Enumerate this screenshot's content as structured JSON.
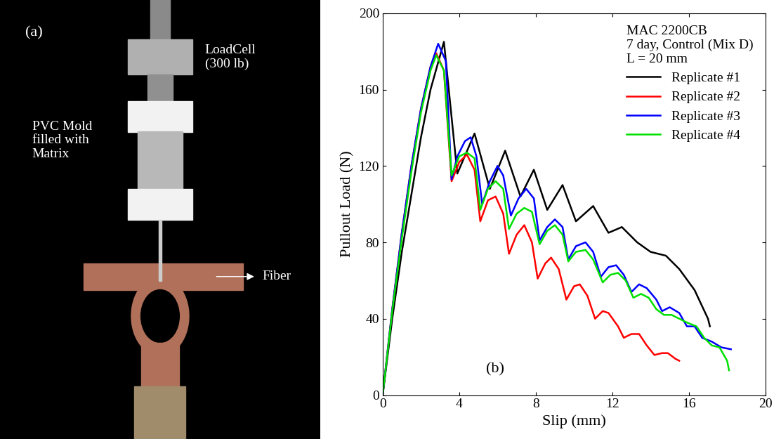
{
  "photo": {
    "panel_label": "(a)",
    "labels": [
      "LoadCell\n(300 lb)",
      "PVC Mold\nfilled with\nMatrix",
      "Fiber"
    ]
  },
  "chart_data": {
    "type": "line",
    "panel_label": "(b)",
    "x_label": "Slip (mm)",
    "y_label": "Pullout Load (N)",
    "annotations": [
      "MAC 2200CB",
      "7 day, Control (Mix D)",
      "L = 20 mm"
    ],
    "xlim": [
      0,
      20
    ],
    "xticks": [
      0,
      4,
      8,
      12,
      16,
      20
    ],
    "ylim": [
      0,
      200
    ],
    "yticks": [
      0,
      40,
      80,
      120,
      160,
      200
    ],
    "legend": "upper right",
    "grid": false,
    "series": [
      {
        "name": "Replicate #1",
        "color": "#000000",
        "x": [
          0,
          0.5,
          1,
          1.5,
          2,
          2.5,
          3.2,
          3.9,
          4.8,
          5.6,
          6.4,
          7.2,
          7.9,
          8.6,
          9.4,
          10.1,
          11,
          11.8,
          12.5,
          13.3,
          14,
          14.8,
          15.5,
          16.3,
          17,
          17.1
        ],
        "values": [
          0,
          40,
          75,
          105,
          135,
          160,
          185,
          116,
          137,
          108,
          128,
          104,
          118,
          97,
          110,
          91,
          99,
          85,
          88,
          80,
          75,
          73,
          66,
          55,
          40,
          36
        ]
      },
      {
        "name": "Replicate #2",
        "color": "#ff0000",
        "x": [
          0,
          0.5,
          1,
          1.5,
          2,
          2.5,
          2.8,
          3.2,
          3.6,
          4.0,
          4.4,
          4.8,
          5.1,
          5.5,
          5.9,
          6.3,
          6.6,
          7.0,
          7.4,
          7.8,
          8.1,
          8.5,
          8.8,
          9.2,
          9.6,
          10,
          10.3,
          10.7,
          11.1,
          11.5,
          11.8,
          12.3,
          12.6,
          13,
          13.4,
          13.8,
          14.2,
          14.6,
          14.9,
          15.3,
          15.5
        ],
        "values": [
          0,
          45,
          85,
          120,
          150,
          172,
          179,
          170,
          112,
          122,
          126,
          118,
          91,
          102,
          104,
          95,
          74,
          84,
          89,
          80,
          61,
          69,
          72,
          66,
          50,
          57,
          58,
          52,
          40,
          44,
          43,
          36,
          30,
          32,
          32,
          26,
          21,
          22,
          22,
          19,
          18
        ]
      },
      {
        "name": "Replicate #3",
        "color": "#0000ff",
        "x": [
          0,
          0.5,
          1,
          1.5,
          2,
          2.5,
          2.9,
          3.3,
          3.6,
          3.9,
          4.3,
          4.6,
          4.9,
          5.2,
          5.6,
          6.0,
          6.3,
          6.7,
          7.1,
          7.5,
          7.9,
          8.2,
          8.6,
          9.0,
          9.4,
          9.7,
          10.1,
          10.6,
          11,
          11.4,
          11.8,
          12.2,
          12.6,
          13,
          13.4,
          13.8,
          14.3,
          14.6,
          15,
          15.5,
          15.9,
          16.3,
          16.7,
          17.2,
          17.7,
          18.2
        ],
        "values": [
          0,
          45,
          85,
          120,
          150,
          172,
          184,
          175,
          113,
          125,
          133,
          135,
          125,
          100,
          112,
          120,
          115,
          94,
          103,
          108,
          103,
          81,
          88,
          92,
          88,
          71,
          78,
          80,
          75,
          62,
          67,
          68,
          63,
          54,
          58,
          56,
          50,
          44,
          46,
          43,
          36,
          36,
          30,
          28,
          25,
          24
        ]
      },
      {
        "name": "Replicate #4",
        "color": "#00e000",
        "x": [
          0,
          0.5,
          1,
          1.5,
          2,
          2.5,
          2.8,
          3.2,
          3.6,
          4.0,
          4.4,
          4.8,
          5.1,
          5.5,
          5.9,
          6.3,
          6.6,
          7.0,
          7.4,
          7.8,
          8.2,
          8.6,
          9.0,
          9.4,
          9.7,
          10.1,
          10.6,
          11,
          11.5,
          11.9,
          12.3,
          12.7,
          13.1,
          13.5,
          13.9,
          14.3,
          14.7,
          15.1,
          15.5,
          15.9,
          16.4,
          16.8,
          17.2,
          17.6,
          18,
          18.1
        ],
        "values": [
          0,
          44,
          82,
          117,
          148,
          170,
          178,
          170,
          115,
          125,
          127,
          124,
          97,
          108,
          112,
          108,
          87,
          95,
          98,
          96,
          79,
          86,
          89,
          84,
          70,
          75,
          76,
          71,
          59,
          63,
          64,
          60,
          51,
          53,
          51,
          45,
          42,
          42,
          40,
          38,
          36,
          30,
          26,
          25,
          18,
          13
        ]
      }
    ]
  }
}
